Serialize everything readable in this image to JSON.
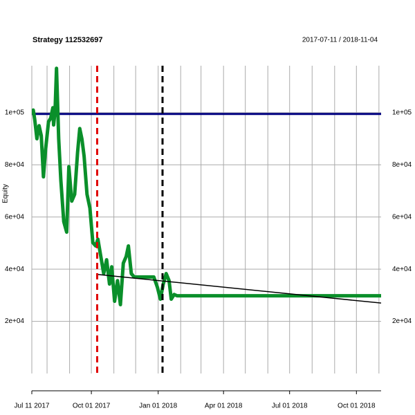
{
  "chart_data": {
    "type": "line",
    "title": "Strategy 112532697",
    "subtitle": "2017-07-11 / 2018-11-04",
    "y_label": "Equity",
    "xlim": [
      "2017-07-11",
      "2018-11-04"
    ],
    "ylim": [
      0,
      118000
    ],
    "yticks": [
      {
        "value": 20000,
        "label": "2e+04"
      },
      {
        "value": 40000,
        "label": "4e+04"
      },
      {
        "value": 60000,
        "label": "6e+04"
      },
      {
        "value": 80000,
        "label": "8e+04"
      },
      {
        "value": 100000,
        "label": "1e+05"
      }
    ],
    "xticks": [
      {
        "value": "2017-07-11",
        "label": "Jul 11 2017"
      },
      {
        "value": "2017-10-01",
        "label": "Oct 01 2017"
      },
      {
        "value": "2018-01-01",
        "label": "Jan 01 2018"
      },
      {
        "value": "2018-04-01",
        "label": "Apr 01 2018"
      },
      {
        "value": "2018-07-01",
        "label": "Jul 01 2018"
      },
      {
        "value": "2018-10-01",
        "label": "Oct 01 2018"
      }
    ],
    "xgrid": [
      "2017-07-11",
      "2017-08-01",
      "2017-09-01",
      "2017-10-01",
      "2017-11-01",
      "2017-12-01",
      "2018-01-01",
      "2018-02-01",
      "2018-03-01",
      "2018-04-01",
      "2018-05-01",
      "2018-06-01",
      "2018-07-01",
      "2018-08-01",
      "2018-09-01",
      "2018-10-01",
      "2018-11-01"
    ],
    "grid": true,
    "series": [
      {
        "name": "Equity",
        "color": "#0a8f2a",
        "x": [
          "2017-07-11",
          "2017-07-13",
          "2017-07-15",
          "2017-07-18",
          "2017-07-21",
          "2017-07-24",
          "2017-07-27",
          "2017-07-30",
          "2017-08-03",
          "2017-08-06",
          "2017-08-09",
          "2017-08-10",
          "2017-08-12",
          "2017-08-14",
          "2017-08-17",
          "2017-08-20",
          "2017-08-24",
          "2017-08-28",
          "2017-08-31",
          "2017-09-04",
          "2017-09-08",
          "2017-09-12",
          "2017-09-15",
          "2017-09-18",
          "2017-09-21",
          "2017-09-25",
          "2017-09-29",
          "2017-10-03",
          "2017-10-07",
          "2017-10-10",
          "2017-10-14",
          "2017-10-18",
          "2017-10-22",
          "2017-10-26",
          "2017-10-29",
          "2017-11-02",
          "2017-11-06",
          "2017-11-10",
          "2017-11-14",
          "2017-11-18",
          "2017-11-21",
          "2017-11-25",
          "2017-11-29",
          "2017-12-05",
          "2017-12-26",
          "2017-12-31",
          "2018-01-04",
          "2018-01-08",
          "2018-01-12",
          "2018-01-16",
          "2018-01-19",
          "2018-01-23",
          "2018-01-27",
          "2018-11-04"
        ],
        "values": [
          99300,
          101000,
          97400,
          90000,
          95000,
          91200,
          75400,
          86000,
          96500,
          97900,
          101900,
          95300,
          100500,
          117000,
          90000,
          74000,
          58200,
          54200,
          79300,
          66100,
          68700,
          84700,
          93900,
          89900,
          83300,
          68700,
          63400,
          50200,
          48900,
          51500,
          44900,
          38300,
          43600,
          34300,
          40900,
          27700,
          35600,
          26400,
          42300,
          44900,
          48900,
          38300,
          37000,
          37000,
          37000,
          33000,
          28500,
          34300,
          38300,
          35600,
          28500,
          30300,
          29800,
          29800
        ]
      }
    ],
    "hline": {
      "value": 99500,
      "color": "#000080"
    },
    "vlines": [
      {
        "x": "2017-10-09",
        "color": "#e00000"
      },
      {
        "x": "2018-01-07",
        "color": "#000000"
      }
    ],
    "trend": {
      "x": [
        "2017-10-09",
        "2018-11-04"
      ],
      "values": [
        38000,
        27000
      ],
      "color": "#000000"
    }
  }
}
